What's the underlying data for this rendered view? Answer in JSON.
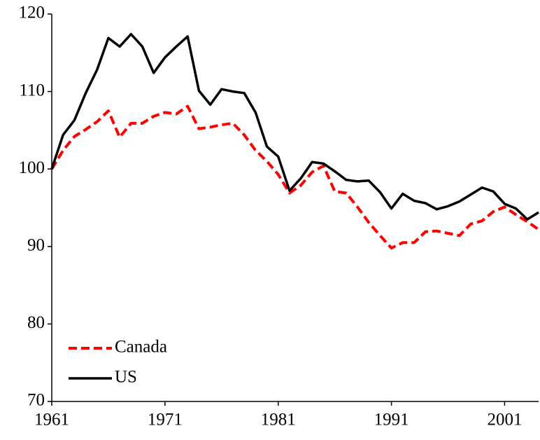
{
  "chart_data": {
    "type": "line",
    "x": [
      1961,
      1962,
      1963,
      1964,
      1965,
      1966,
      1967,
      1968,
      1969,
      1970,
      1971,
      1972,
      1973,
      1974,
      1975,
      1976,
      1977,
      1978,
      1979,
      1980,
      1981,
      1982,
      1983,
      1984,
      1985,
      1986,
      1987,
      1988,
      1989,
      1990,
      1991,
      1992,
      1993,
      1994,
      1995,
      1996,
      1997,
      1998,
      1999,
      2000,
      2001,
      2002,
      2003,
      2004
    ],
    "series": [
      {
        "name": "Canada",
        "color": "#ff0000",
        "dash": true,
        "values": [
          100,
          102.4,
          104.2,
          105.1,
          106.1,
          107.5,
          104.1,
          105.9,
          105.9,
          106.8,
          107.3,
          107.1,
          108.1,
          105.2,
          105.4,
          105.7,
          105.9,
          104.4,
          102.4,
          101.0,
          99.3,
          96.9,
          97.9,
          99.6,
          100.4,
          97.1,
          96.9,
          95.1,
          93.1,
          91.4,
          89.8,
          90.5,
          90.5,
          91.9,
          92.0,
          91.7,
          91.4,
          92.9,
          93.3,
          94.5,
          95.1,
          94.1,
          93.2,
          92.2
        ]
      },
      {
        "name": "US",
        "color": "#000000",
        "dash": false,
        "values": [
          100,
          104.4,
          106.3,
          109.8,
          112.8,
          116.9,
          115.8,
          117.4,
          115.8,
          112.4,
          114.4,
          115.8,
          117.1,
          110.1,
          108.3,
          110.3,
          110.0,
          109.8,
          107.3,
          102.9,
          101.6,
          97.2,
          98.8,
          100.9,
          100.7,
          99.7,
          98.6,
          98.4,
          98.5,
          97.0,
          94.9,
          96.8,
          95.9,
          95.6,
          94.8,
          95.2,
          95.8,
          96.7,
          97.6,
          97.1,
          95.5,
          94.9,
          93.5,
          94.4
        ]
      }
    ],
    "xlim": [
      1961,
      2004
    ],
    "xticks": [
      1961,
      1971,
      1981,
      1991,
      2001
    ],
    "ylim": [
      70,
      120
    ],
    "yticks": [
      70,
      80,
      90,
      100,
      110,
      120
    ],
    "legend": "bottom-left"
  }
}
